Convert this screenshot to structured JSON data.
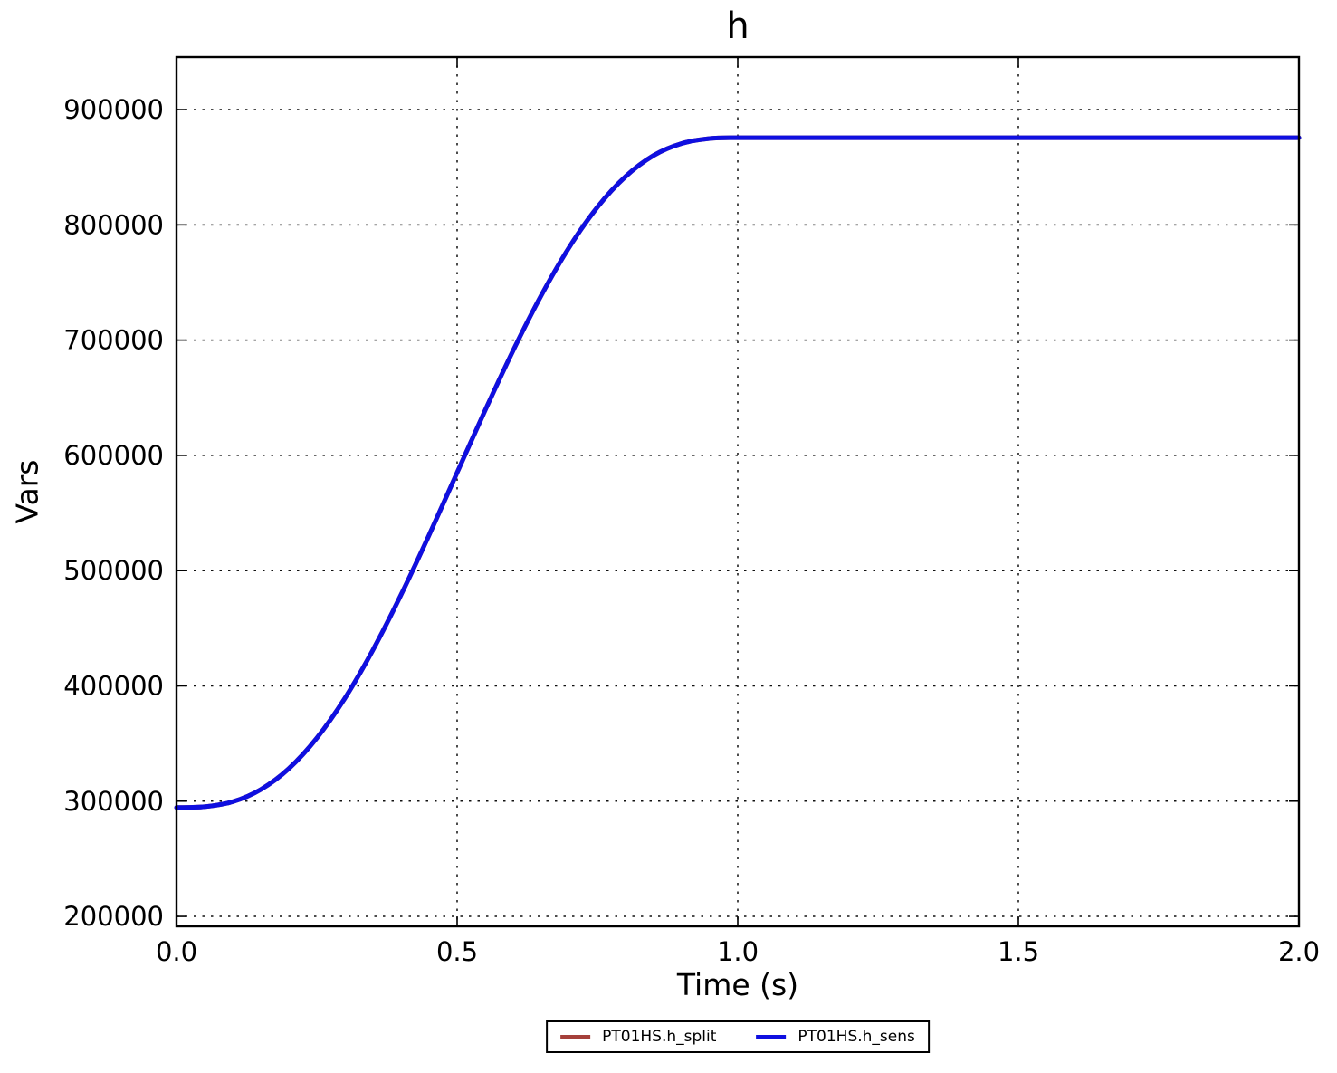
{
  "chart_data": {
    "type": "line",
    "title": "h",
    "xlabel": "Time (s)",
    "ylabel": "Vars",
    "xlim": [
      0.0,
      2.0
    ],
    "ylim": [
      191400,
      945600
    ],
    "xticks": [
      0.0,
      0.5,
      1.0,
      1.5,
      2.0
    ],
    "yticks": [
      200000,
      300000,
      400000,
      500000,
      600000,
      700000,
      800000,
      900000
    ],
    "grid": "dotted",
    "legend_position": "bottom-center-outside",
    "frame_color": "#000000",
    "background_color": "#ffffff",
    "x": [
      0.0,
      0.05,
      0.1,
      0.15,
      0.2,
      0.25,
      0.3,
      0.35,
      0.4,
      0.45,
      0.5,
      0.55,
      0.6,
      0.65,
      0.7,
      0.75,
      0.8,
      0.85,
      0.9,
      0.95,
      1.0,
      1.1,
      1.2,
      1.3,
      1.4,
      1.5,
      1.6,
      1.7,
      1.8,
      1.9,
      2.0
    ],
    "series": [
      {
        "name": "PT01HS.h_split",
        "color": "#a5403a",
        "line_width": 5,
        "values": [
          294500,
          295200,
          299500,
          310000,
          328200,
          354700,
          389300,
          431200,
          479000,
          530900,
          585100,
          639200,
          691200,
          738900,
          780800,
          815400,
          841900,
          860200,
          870600,
          874900,
          875600,
          875600,
          875600,
          875600,
          875600,
          875600,
          875600,
          875600,
          875600,
          875600,
          875600
        ]
      },
      {
        "name": "PT01HS.h_sens",
        "color": "#0f0fe0",
        "line_width": 5,
        "values": [
          294500,
          295200,
          299500,
          310000,
          328200,
          354700,
          389300,
          431200,
          479000,
          530900,
          585100,
          639200,
          691200,
          738900,
          780800,
          815400,
          841900,
          860200,
          870600,
          874900,
          875600,
          875600,
          875600,
          875600,
          875600,
          875600,
          875600,
          875600,
          875600,
          875600,
          875600
        ]
      }
    ]
  }
}
